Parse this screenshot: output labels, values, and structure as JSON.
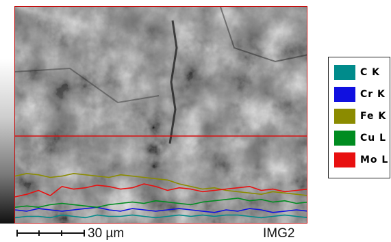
{
  "chart_data": {
    "type": "line",
    "title": "",
    "xlabel": "",
    "ylabel": "",
    "x": [
      0,
      2,
      4,
      6,
      8,
      10,
      12,
      14,
      16,
      18,
      20,
      22,
      24,
      26,
      28,
      30,
      32,
      34,
      36,
      38,
      40,
      42,
      44,
      46,
      48,
      50
    ],
    "xlim": [
      0,
      50
    ],
    "ylim": [
      0,
      100
    ],
    "xunit": "µm",
    "series": [
      {
        "name": "C K",
        "color": "#008b8b",
        "values": [
          4,
          5,
          5,
          4,
          6,
          5,
          4,
          6,
          5,
          5,
          6,
          5,
          4,
          5,
          6,
          5,
          6,
          5,
          6,
          6,
          5,
          4,
          5,
          6,
          5,
          4
        ]
      },
      {
        "name": "Cr K",
        "color": "#1010e0",
        "values": [
          10,
          9,
          11,
          10,
          9,
          10,
          11,
          12,
          10,
          9,
          11,
          10,
          9,
          10,
          11,
          10,
          9,
          8,
          10,
          9,
          11,
          10,
          8,
          9,
          10,
          9
        ]
      },
      {
        "name": "Fe K",
        "color": "#8b8b00",
        "values": [
          36,
          38,
          37,
          35,
          36,
          38,
          37,
          36,
          35,
          37,
          36,
          35,
          34,
          33,
          30,
          28,
          26,
          27,
          25,
          24,
          23,
          22,
          24,
          23,
          22,
          21
        ]
      },
      {
        "name": "Cu L",
        "color": "#008c20",
        "values": [
          12,
          13,
          12,
          14,
          15,
          14,
          13,
          12,
          14,
          15,
          16,
          15,
          17,
          16,
          15,
          14,
          16,
          17,
          18,
          19,
          17,
          18,
          16,
          17,
          15,
          16
        ]
      },
      {
        "name": "Mo L",
        "color": "#e81010",
        "values": [
          20,
          22,
          25,
          21,
          28,
          26,
          27,
          29,
          28,
          26,
          27,
          30,
          28,
          25,
          27,
          26,
          24,
          25,
          26,
          27,
          28,
          25,
          26,
          24,
          25,
          26
        ]
      }
    ],
    "legend_position": "right",
    "scale_bar_label": "30 µm",
    "image_label": "IMG2"
  }
}
